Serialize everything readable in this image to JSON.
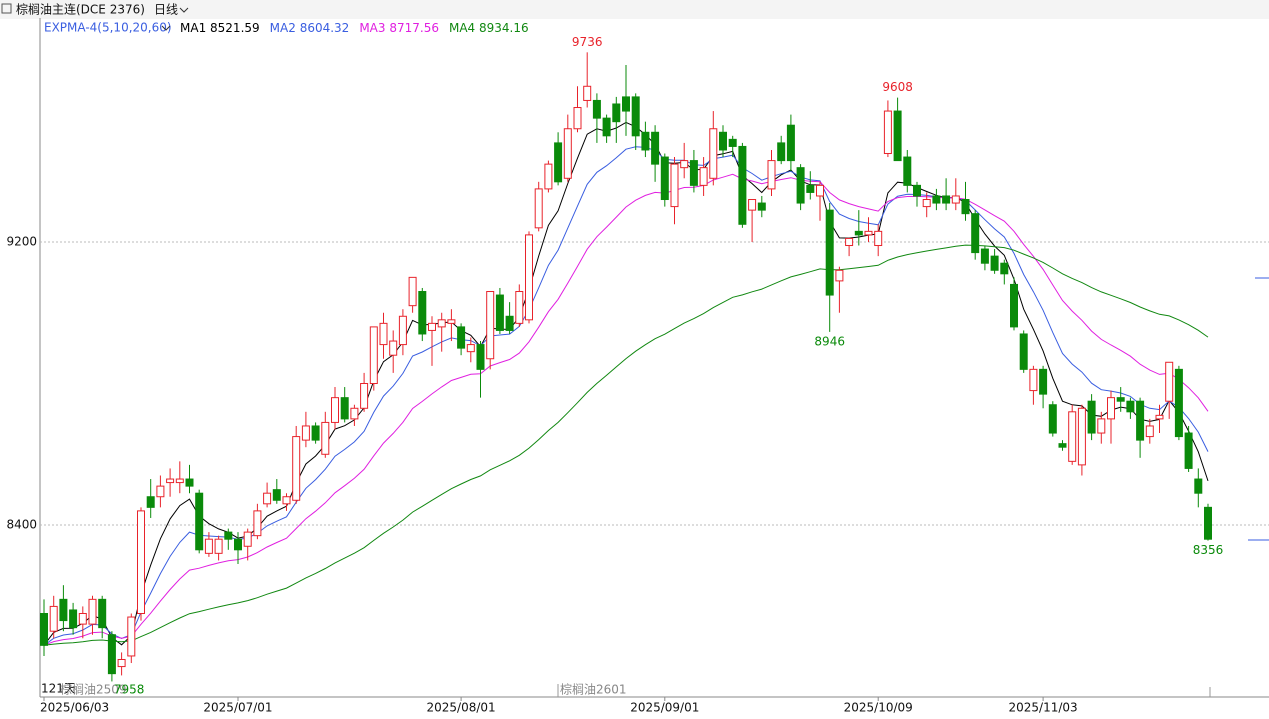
{
  "chart_data": {
    "type": "candlestick",
    "title": "棕榈油主连(DCE 2376)",
    "period": "日线",
    "indicator": "EXPMA-4(5,10,20,60)",
    "ma": [
      {
        "name": "MA1",
        "value": 8521.59,
        "color": "#000000"
      },
      {
        "name": "MA2",
        "value": 8604.32,
        "color": "#3a5ee0"
      },
      {
        "name": "MA3",
        "value": 8717.56,
        "color": "#e020e0"
      },
      {
        "name": "MA4",
        "value": 8934.16,
        "color": "#118811"
      }
    ],
    "day_count": "121天",
    "contracts": [
      "棕榈油2509",
      "棕榈油2601"
    ],
    "up_color": "#e8232b",
    "down_color": "#0a8a0a",
    "grid": true,
    "ylim": [
      7914,
      9833
    ],
    "yticks": [
      8400,
      9200
    ],
    "categories": [
      "2025/06/03",
      null,
      null,
      null,
      null,
      null,
      null,
      null,
      null,
      null,
      null,
      null,
      null,
      null,
      null,
      null,
      null,
      null,
      null,
      null,
      "2025/07/01",
      null,
      null,
      null,
      null,
      null,
      null,
      null,
      null,
      null,
      null,
      null,
      null,
      null,
      null,
      null,
      null,
      null,
      null,
      null,
      null,
      null,
      null,
      "2025/08/01",
      null,
      null,
      null,
      null,
      null,
      null,
      null,
      null,
      null,
      null,
      null,
      null,
      null,
      null,
      null,
      null,
      null,
      null,
      null,
      null,
      "2025/09/01",
      null,
      null,
      null,
      null,
      null,
      null,
      null,
      null,
      null,
      null,
      null,
      null,
      null,
      null,
      null,
      null,
      null,
      null,
      null,
      null,
      null,
      "2025/10/09",
      null,
      null,
      null,
      null,
      null,
      null,
      null,
      null,
      null,
      null,
      null,
      null,
      null,
      null,
      null,
      null,
      "2025/11/03",
      null,
      null,
      null,
      null,
      null,
      null,
      null,
      null,
      null,
      null,
      null,
      null,
      null,
      null,
      null,
      null,
      null
    ],
    "open": [
      8150,
      8100,
      8190,
      8160,
      8120,
      8120,
      8190,
      8090,
      8000,
      8030,
      8150,
      8480,
      8480,
      8520,
      8520,
      8530,
      8490,
      8320,
      8320,
      8380,
      8360,
      8340,
      8370,
      8460,
      8500,
      8460,
      8470,
      8640,
      8680,
      8600,
      8690,
      8760,
      8700,
      8730,
      8800,
      8910,
      8880,
      8910,
      9020,
      9060,
      8950,
      8960,
      8970,
      8960,
      8890,
      8910,
      8870,
      9050,
      8990,
      8970,
      8980,
      9240,
      9350,
      9480,
      9380,
      9520,
      9600,
      9600,
      9550,
      9590,
      9610,
      9610,
      9510,
      9510,
      9440,
      9300,
      9410,
      9430,
      9360,
      9380,
      9510,
      9490,
      9470,
      9290,
      9310,
      9350,
      9480,
      9530,
      9410,
      9360,
      9330,
      9290,
      9090,
      9190,
      9230,
      9220,
      9190,
      9450,
      9570,
      9440,
      9360,
      9300,
      9330,
      9330,
      9310,
      9320,
      9280,
      9180,
      9160,
      9140,
      9080,
      8940,
      8780,
      8840,
      8740,
      8630,
      8580,
      8570,
      8750,
      8660,
      8700,
      8760,
      8750,
      8750,
      8650,
      8700,
      8750,
      8840,
      8660,
      8530,
      8450
    ],
    "high": [
      8190,
      8200,
      8230,
      8180,
      8170,
      8200,
      8200,
      8100,
      8040,
      8150,
      8450,
      8530,
      8540,
      8560,
      8580,
      8570,
      8500,
      8380,
      8370,
      8390,
      8380,
      8390,
      8460,
      8520,
      8530,
      8490,
      8680,
      8720,
      8690,
      8720,
      8790,
      8790,
      8740,
      8830,
      8960,
      9000,
      8950,
      9010,
      9100,
      9070,
      8990,
      9000,
      9010,
      8970,
      8930,
      8920,
      9060,
      9070,
      9030,
      9080,
      9230,
      9370,
      9430,
      9510,
      9560,
      9640,
      9736,
      9620,
      9560,
      9610,
      9700,
      9620,
      9540,
      9530,
      9450,
      9440,
      9480,
      9460,
      9440,
      9570,
      9530,
      9500,
      9480,
      9320,
      9330,
      9460,
      9500,
      9560,
      9420,
      9400,
      9370,
      9310,
      9130,
      9210,
      9290,
      9270,
      9250,
      9600,
      9608,
      9460,
      9370,
      9340,
      9350,
      9380,
      9380,
      9370,
      9290,
      9190,
      9180,
      9150,
      9100,
      8950,
      8850,
      8850,
      8750,
      8640,
      8740,
      8740,
      8770,
      8720,
      8780,
      8790,
      8760,
      8760,
      8700,
      8740,
      8850,
      8850,
      8680,
      8560,
      8460
    ],
    "low": [
      8030,
      8080,
      8100,
      8090,
      8080,
      8090,
      8080,
      7958,
      7975,
      8010,
      8130,
      8420,
      8450,
      8480,
      8490,
      8490,
      8320,
      8310,
      8300,
      8330,
      8290,
      8300,
      8360,
      8450,
      8460,
      8440,
      8460,
      8620,
      8630,
      8590,
      8670,
      8690,
      8680,
      8720,
      8780,
      8870,
      8830,
      8880,
      9000,
      8920,
      8850,
      8890,
      8920,
      8880,
      8860,
      8760,
      8840,
      8940,
      8940,
      8960,
      8970,
      9230,
      9340,
      9360,
      9370,
      9510,
      9580,
      9480,
      9480,
      9480,
      9500,
      9460,
      9440,
      9370,
      9300,
      9250,
      9380,
      9340,
      9330,
      9360,
      9440,
      9440,
      9240,
      9200,
      9270,
      9330,
      9420,
      9400,
      9290,
      9320,
      9260,
      8946,
      9000,
      9160,
      9190,
      9200,
      9160,
      9440,
      9430,
      9340,
      9300,
      9270,
      9290,
      9290,
      9290,
      9260,
      9150,
      9120,
      9110,
      9080,
      8950,
      8830,
      8740,
      8730,
      8650,
      8610,
      8570,
      8540,
      8640,
      8630,
      8630,
      8720,
      8700,
      8590,
      8630,
      8660,
      8700,
      8640,
      8550,
      8450,
      8356
    ],
    "close": [
      8060,
      8170,
      8130,
      8110,
      8150,
      8190,
      8110,
      7980,
      8020,
      8140,
      8440,
      8450,
      8510,
      8530,
      8530,
      8510,
      8330,
      8360,
      8360,
      8360,
      8330,
      8380,
      8440,
      8490,
      8470,
      8480,
      8650,
      8680,
      8640,
      8690,
      8760,
      8700,
      8730,
      8800,
      8960,
      8970,
      8920,
      8990,
      9100,
      8940,
      8970,
      8980,
      8980,
      8900,
      8910,
      8840,
      9060,
      8950,
      8950,
      9060,
      9220,
      9350,
      9420,
      9370,
      9520,
      9580,
      9640,
      9550,
      9500,
      9540,
      9570,
      9500,
      9460,
      9420,
      9320,
      9420,
      9430,
      9360,
      9410,
      9520,
      9460,
      9470,
      9250,
      9320,
      9290,
      9430,
      9430,
      9430,
      9310,
      9340,
      9360,
      9050,
      9120,
      9210,
      9220,
      9230,
      9230,
      9570,
      9430,
      9360,
      9330,
      9320,
      9310,
      9310,
      9330,
      9280,
      9170,
      9140,
      9120,
      9110,
      8960,
      8840,
      8840,
      8770,
      8660,
      8620,
      8720,
      8730,
      8660,
      8700,
      8760,
      8750,
      8720,
      8640,
      8680,
      8710,
      8860,
      8650,
      8560,
      8490,
      8360
    ]
  }
}
